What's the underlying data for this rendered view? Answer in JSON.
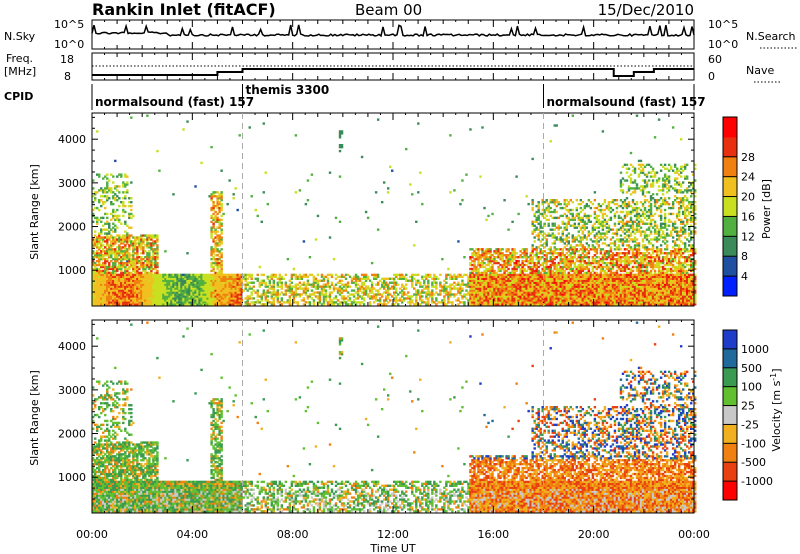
{
  "header": {
    "station": "Rankin Inlet (fitACF)",
    "beam": "Beam 00",
    "date": "15/Dec/2010"
  },
  "panels": {
    "noise": {
      "left_label": "N.Sky",
      "left_ticks": [
        "10^5",
        "10^0"
      ],
      "right_label": "N.Search",
      "right_ticks": [
        "10^5",
        "10^0"
      ]
    },
    "freq": {
      "left_label_1": "Freq.",
      "left_label_2": "[MHz]",
      "left_ticks": [
        "18",
        "8"
      ],
      "right_label": "Nave",
      "right_ticks": [
        "60",
        "0"
      ]
    },
    "cpid": {
      "label": "CPID",
      "segments": [
        {
          "start_hour": 0,
          "text": "normalsound (fast) 157"
        },
        {
          "start_hour": 6,
          "text": "themis 3300"
        },
        {
          "start_hour": 18,
          "text": "normalsound (fast) 157"
        }
      ]
    }
  },
  "chart_data": [
    {
      "type": "heatmap",
      "name": "power",
      "ylabel": "Slant Range [km]",
      "yticks": [
        "1000",
        "2000",
        "3000",
        "4000"
      ],
      "ylim": [
        180,
        4600
      ],
      "colorbar_label": "Power [dB]",
      "colorbar_ticks": [
        "4",
        "8",
        "12",
        "16",
        "20",
        "24",
        "28"
      ],
      "colorbar_colors": [
        "#0020ff",
        "#1f4fa0",
        "#3a8a5a",
        "#52b040",
        "#c8e020",
        "#f0c020",
        "#f08010",
        "#e83010",
        "#ff0000"
      ]
    },
    {
      "type": "heatmap",
      "name": "velocity",
      "ylabel": "Slant Range [km]",
      "yticks": [
        "1000",
        "2000",
        "3000",
        "4000"
      ],
      "ylim": [
        180,
        4600
      ],
      "colorbar_label": "Velocity [m s^-1]",
      "colorbar_ticks": [
        "1000",
        "500",
        "100",
        "25",
        "-25",
        "-100",
        "-500",
        "-1000"
      ],
      "colorbar_colors": [
        "#1f3cc8",
        "#1f6a9a",
        "#3a9a50",
        "#60c030",
        "#c8c8c8",
        "#f0b020",
        "#f08010",
        "#e84010",
        "#ff0000"
      ]
    }
  ],
  "time_axis": {
    "xlabel": "Time UT",
    "ticks": [
      "00:00",
      "04:00",
      "08:00",
      "12:00",
      "16:00",
      "20:00",
      "00:00"
    ],
    "xlim": [
      0,
      24
    ]
  },
  "colors": {
    "frame": "#000000",
    "divider": "#999999"
  }
}
